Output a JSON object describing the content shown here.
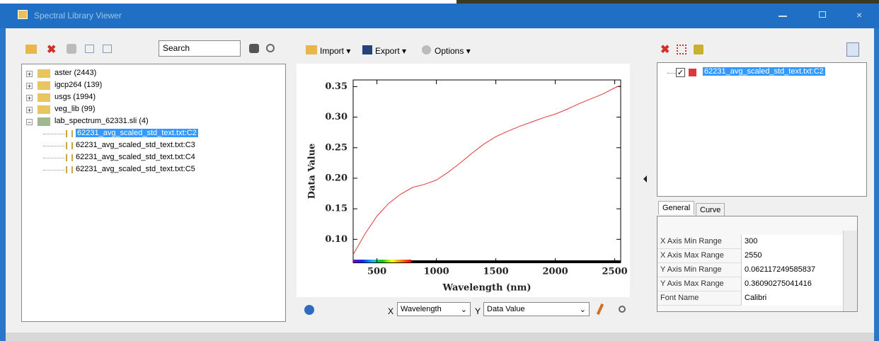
{
  "window": {
    "title": "Spectral Library Viewer"
  },
  "left_panel": {
    "search": "Search",
    "tree": [
      {
        "label": "aster (2443)"
      },
      {
        "label": "igcp264 (139)"
      },
      {
        "label": "usgs (1994)"
      },
      {
        "label": "veg_lib (99)"
      },
      {
        "label": "lab_spectrum_62331.sli (4)",
        "children": [
          {
            "label": "62231_avg_scaled_std_text.txt:C2"
          },
          {
            "label": "62231_avg_scaled_std_text.txt:C3"
          },
          {
            "label": "62231_avg_scaled_std_text.txt:C4"
          },
          {
            "label": "62231_avg_scaled_std_text.txt:C5"
          }
        ]
      }
    ]
  },
  "toolbar": {
    "import": "Import",
    "export": "Export",
    "options": "Options"
  },
  "chart_data": {
    "type": "line",
    "xlabel": "Wavelength (nm)",
    "ylabel": "Data Value",
    "xlim": [
      300,
      2550
    ],
    "ylim": [
      0.062117249585837,
      0.36090275041416
    ],
    "xticks": [
      500,
      1000,
      1500,
      2000,
      2500
    ],
    "yticks": [
      {
        "value": 0.1,
        "label": "0.10"
      },
      0.15,
      {
        "value": 0.2,
        "label": "0.20"
      },
      0.25,
      {
        "value": 0.3,
        "label": "0.30"
      },
      0.35
    ],
    "x": [
      300,
      400,
      500,
      600,
      700,
      800,
      900,
      1000,
      1100,
      1200,
      1300,
      1400,
      1500,
      1600,
      1700,
      1800,
      1900,
      2000,
      2100,
      2200,
      2300,
      2400,
      2500,
      2550
    ],
    "series": [
      {
        "name": "62231_avg_scaled_std_text.txt:C2",
        "color": "#e03838",
        "values": [
          0.075,
          0.109,
          0.138,
          0.159,
          0.174,
          0.185,
          0.19,
          0.197,
          0.21,
          0.225,
          0.241,
          0.256,
          0.268,
          0.277,
          0.285,
          0.292,
          0.299,
          0.305,
          0.313,
          0.322,
          0.33,
          0.338,
          0.348,
          0.352
        ]
      }
    ]
  },
  "axis_selectors": {
    "x_label": "X",
    "x_value": "Wavelength",
    "y_label": "Y",
    "y_value": "Data Value"
  },
  "right_panel": {
    "tabs": [
      "General",
      "Curve"
    ],
    "properties": [
      [
        "X Axis Min Range",
        "300"
      ],
      [
        "X Axis Max Range",
        "2550"
      ],
      [
        "Y Axis Min Range",
        "0.062117249585837"
      ],
      [
        "Y Axis Max Range",
        "0.36090275041416"
      ],
      [
        "Font Name",
        "Calibri"
      ]
    ]
  }
}
